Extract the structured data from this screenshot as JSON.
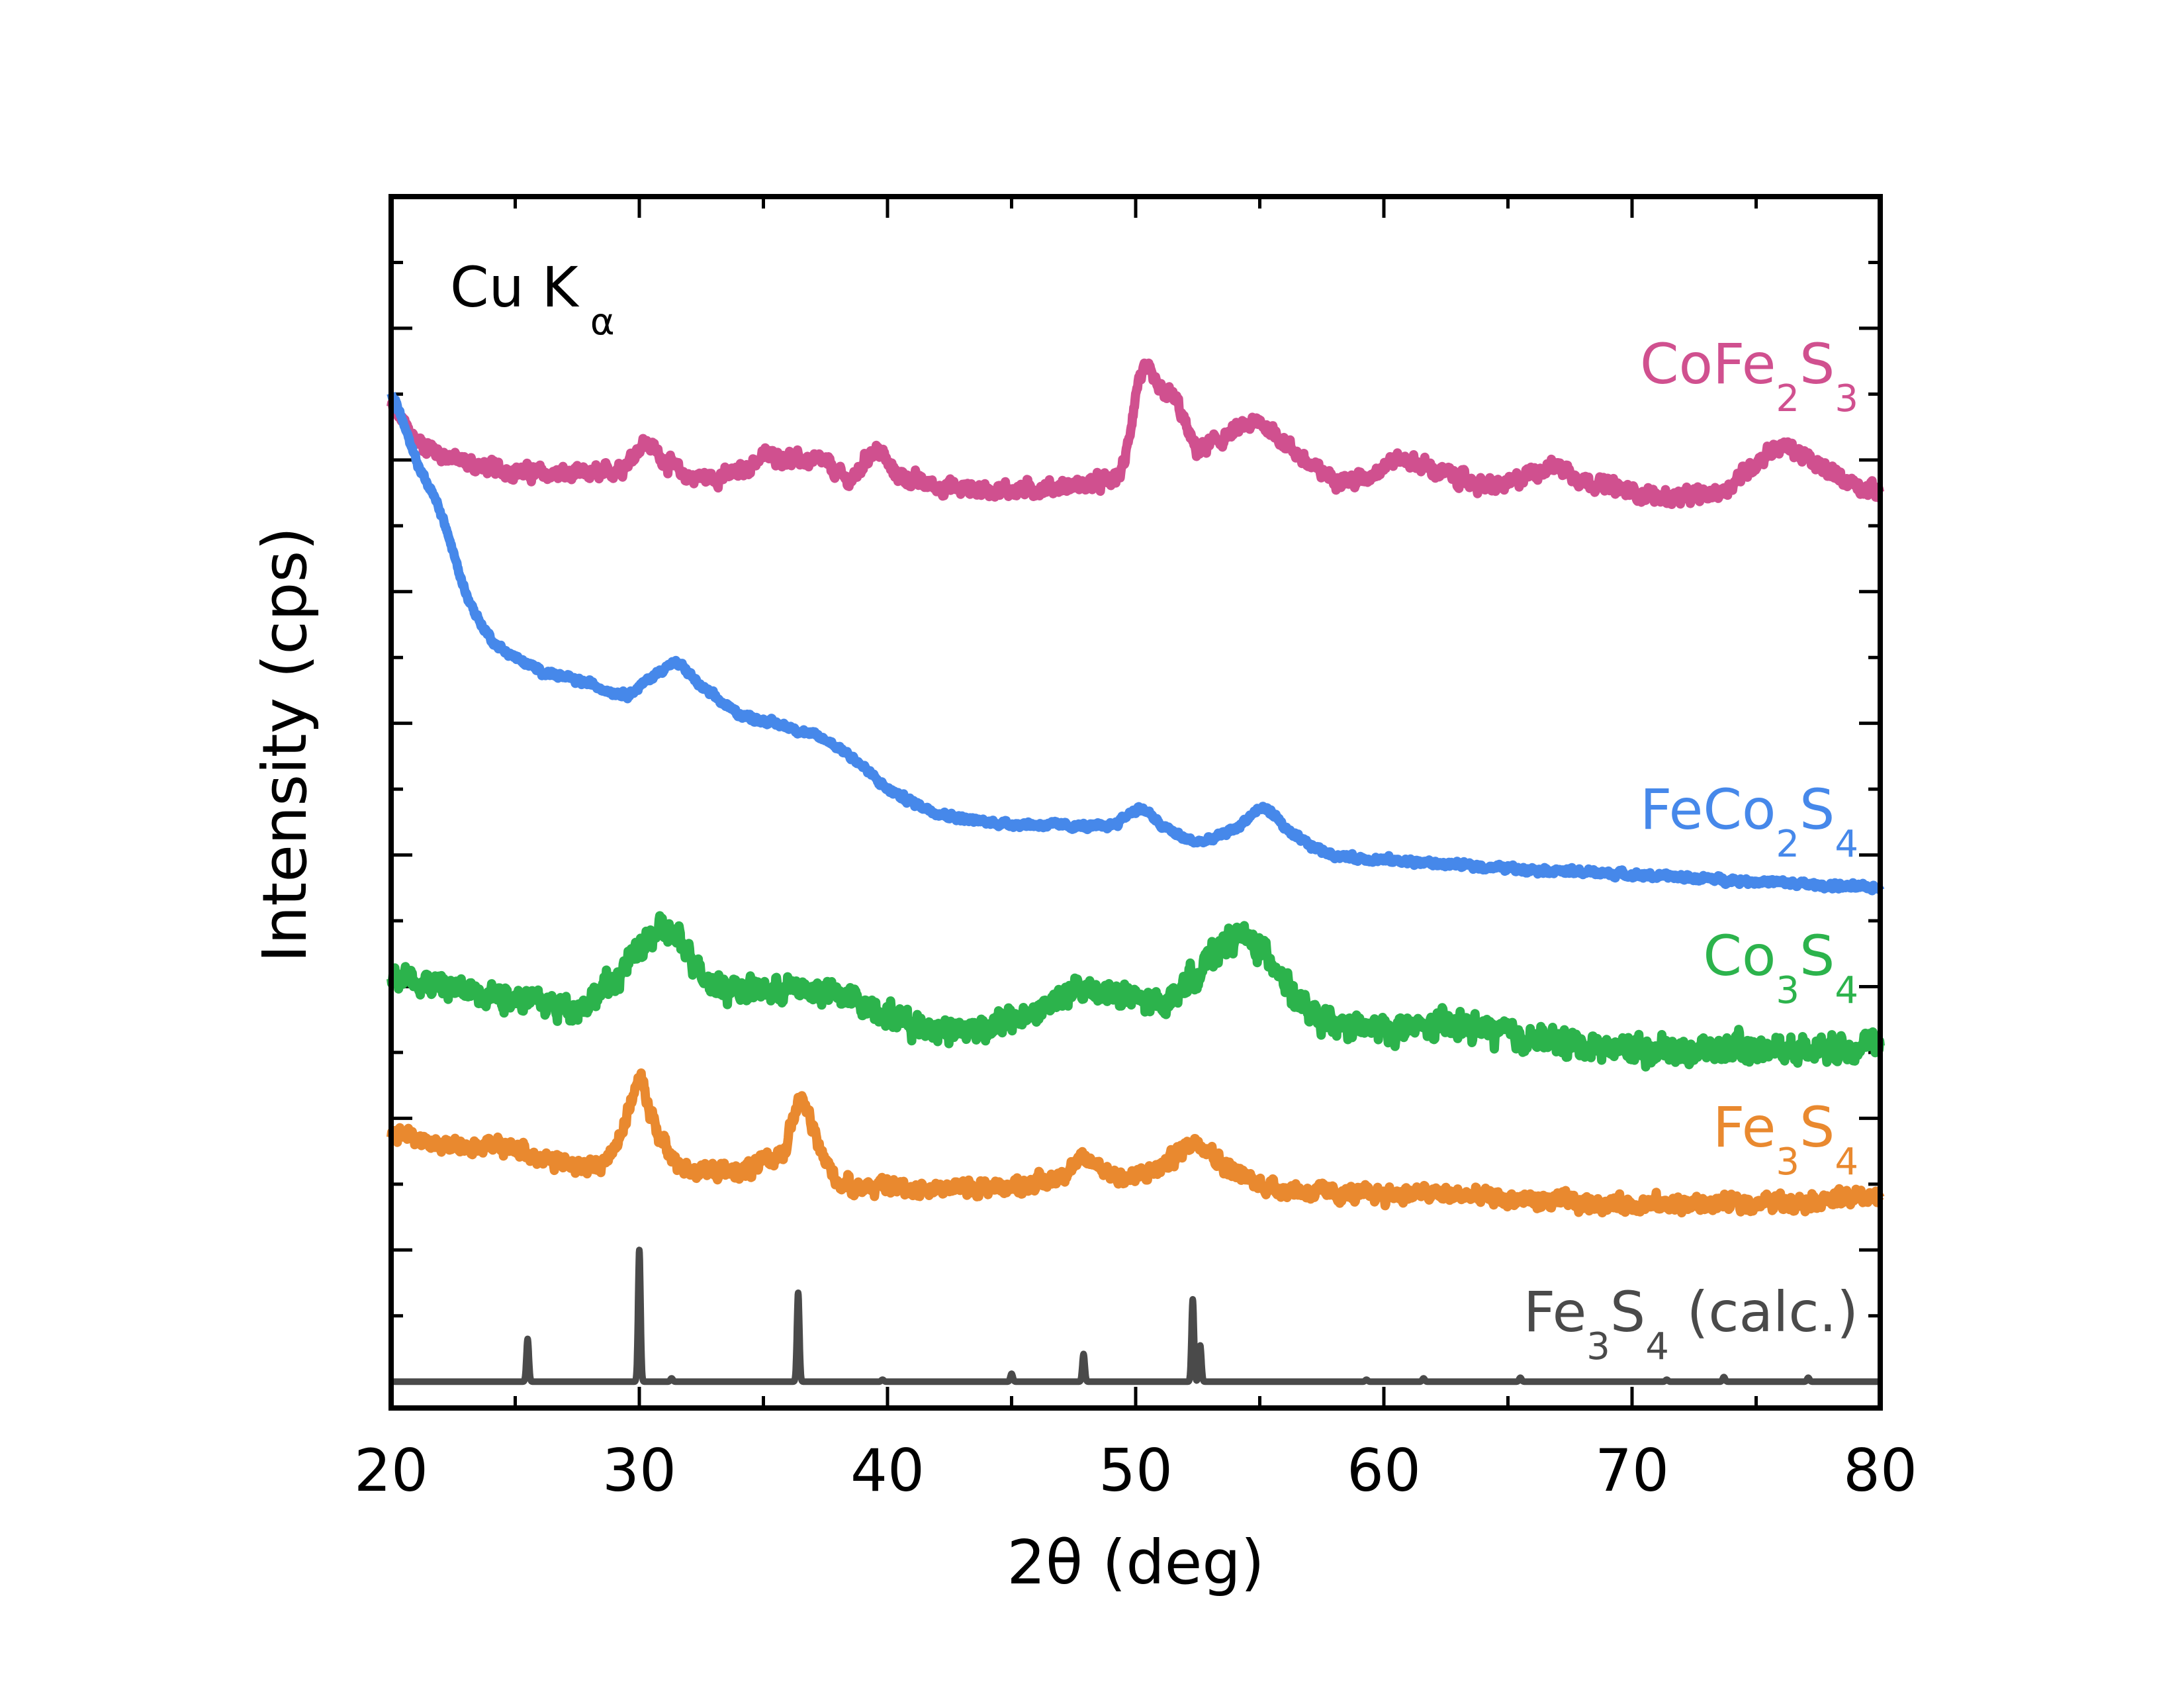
{
  "chart_data": {
    "type": "line",
    "title": "",
    "xlabel": "2θ (deg)",
    "ylabel": "Intensity (cps)",
    "xlim": [
      20,
      80
    ],
    "ylim": [
      -0.4,
      18
    ],
    "xticks": [
      20,
      30,
      40,
      50,
      60,
      70,
      80
    ],
    "xtick_labels": [
      "20",
      "30",
      "40",
      "50",
      "60",
      "70",
      "80"
    ],
    "y_tick_labels_shown": false,
    "annotation": {
      "main": "Cu K",
      "sub": "α"
    },
    "series": [
      {
        "name": "CoFe2S3",
        "label_main": [
          "CoFe",
          "S"
        ],
        "label_sub": [
          "2",
          "3"
        ],
        "color": "#d0508f",
        "noise": 0.12,
        "points": [
          [
            20,
            14.8
          ],
          [
            21,
            14.3
          ],
          [
            23,
            13.95
          ],
          [
            26,
            13.8
          ],
          [
            28.5,
            13.8
          ],
          [
            29.5,
            13.95
          ],
          [
            30.2,
            14.25
          ],
          [
            31,
            14.0
          ],
          [
            32,
            13.75
          ],
          [
            34,
            13.8
          ],
          [
            35,
            14.05
          ],
          [
            36.5,
            14.0
          ],
          [
            37.5,
            13.95
          ],
          [
            38.5,
            13.7
          ],
          [
            39.5,
            14.15
          ],
          [
            40.3,
            13.8
          ],
          [
            42,
            13.6
          ],
          [
            45,
            13.55
          ],
          [
            48.5,
            13.65
          ],
          [
            49.5,
            13.9
          ],
          [
            50.2,
            15.3
          ],
          [
            51,
            15.05
          ],
          [
            51.6,
            14.9
          ],
          [
            52.4,
            14.2
          ],
          [
            53,
            14.25
          ],
          [
            55,
            14.55
          ],
          [
            56.5,
            14.1
          ],
          [
            57.5,
            13.8
          ],
          [
            59,
            13.7
          ],
          [
            60.5,
            14.0
          ],
          [
            62,
            13.85
          ],
          [
            64.5,
            13.6
          ],
          [
            66.8,
            13.9
          ],
          [
            68,
            13.7
          ],
          [
            71,
            13.45
          ],
          [
            73.5,
            13.5
          ],
          [
            74.5,
            13.8
          ],
          [
            76,
            14.2
          ],
          [
            77.5,
            13.9
          ],
          [
            80,
            13.5
          ]
        ]
      },
      {
        "name": "FeCo2S4",
        "label_main": [
          "FeCo",
          "S"
        ],
        "label_sub": [
          "2",
          "4"
        ],
        "color": "#4688ea",
        "noise": 0.05,
        "points": [
          [
            20,
            15.0
          ],
          [
            21,
            14.0
          ],
          [
            22,
            13.2
          ],
          [
            23,
            12.0
          ],
          [
            24,
            11.3
          ],
          [
            25,
            11.0
          ],
          [
            26,
            10.8
          ],
          [
            28,
            10.6
          ],
          [
            29.5,
            10.45
          ],
          [
            30.5,
            10.7
          ],
          [
            31.5,
            10.9
          ],
          [
            32.5,
            10.55
          ],
          [
            34,
            10.15
          ],
          [
            36,
            9.95
          ],
          [
            37.5,
            9.75
          ],
          [
            38.5,
            9.5
          ],
          [
            40,
            9.0
          ],
          [
            42,
            8.65
          ],
          [
            44,
            8.5
          ],
          [
            47,
            8.45
          ],
          [
            49,
            8.45
          ],
          [
            50.2,
            8.7
          ],
          [
            51,
            8.45
          ],
          [
            52.5,
            8.2
          ],
          [
            54,
            8.4
          ],
          [
            55.2,
            8.7
          ],
          [
            56.3,
            8.3
          ],
          [
            58,
            8.0
          ],
          [
            61,
            7.9
          ],
          [
            65,
            7.8
          ],
          [
            70,
            7.7
          ],
          [
            75,
            7.6
          ],
          [
            80,
            7.5
          ]
        ]
      },
      {
        "name": "Co3S4",
        "label_main": [
          "Co",
          "S"
        ],
        "label_sub": [
          "3",
          "4"
        ],
        "color": "#2cb34c",
        "noise": 0.2,
        "points": [
          [
            20,
            6.2
          ],
          [
            22,
            6.0
          ],
          [
            25,
            5.85
          ],
          [
            27.5,
            5.7
          ],
          [
            29,
            6.1
          ],
          [
            30,
            6.55
          ],
          [
            31,
            6.85
          ],
          [
            32,
            6.5
          ],
          [
            33,
            6.05
          ],
          [
            35,
            5.95
          ],
          [
            37,
            5.95
          ],
          [
            39,
            5.75
          ],
          [
            41,
            5.45
          ],
          [
            43,
            5.35
          ],
          [
            45.5,
            5.55
          ],
          [
            48,
            5.95
          ],
          [
            49.5,
            5.85
          ],
          [
            51,
            5.75
          ],
          [
            52.5,
            6.2
          ],
          [
            54,
            6.75
          ],
          [
            55.5,
            6.4
          ],
          [
            56.5,
            5.8
          ],
          [
            57.5,
            5.45
          ],
          [
            60,
            5.35
          ],
          [
            63,
            5.4
          ],
          [
            66,
            5.2
          ],
          [
            70,
            5.05
          ],
          [
            75,
            5.05
          ],
          [
            80,
            5.1
          ]
        ]
      },
      {
        "name": "Fe3S4",
        "label_main": [
          "Fe",
          "S"
        ],
        "label_sub": [
          "3",
          "4"
        ],
        "color": "#e9892f",
        "noise": 0.13,
        "points": [
          [
            20,
            3.8
          ],
          [
            22,
            3.6
          ],
          [
            25,
            3.55
          ],
          [
            26.5,
            3.35
          ],
          [
            28.5,
            3.3
          ],
          [
            29.4,
            3.9
          ],
          [
            30,
            4.55
          ],
          [
            30.6,
            3.9
          ],
          [
            31.5,
            3.3
          ],
          [
            34,
            3.2
          ],
          [
            35.8,
            3.5
          ],
          [
            36.5,
            4.25
          ],
          [
            37.2,
            3.6
          ],
          [
            38,
            3.05
          ],
          [
            40,
            2.95
          ],
          [
            44,
            2.95
          ],
          [
            46.5,
            3.05
          ],
          [
            48,
            3.35
          ],
          [
            49.5,
            3.1
          ],
          [
            51,
            3.25
          ],
          [
            52.5,
            3.65
          ],
          [
            53.5,
            3.3
          ],
          [
            55,
            3.0
          ],
          [
            58,
            2.85
          ],
          [
            62,
            2.85
          ],
          [
            66,
            2.75
          ],
          [
            70,
            2.7
          ],
          [
            75,
            2.72
          ],
          [
            80,
            2.8
          ]
        ]
      },
      {
        "name": "Fe3S4 (calc.)",
        "label_main": [
          "Fe",
          "S"
        ],
        "label_sub": [
          "3",
          "4"
        ],
        "label_tail": " (calc.)",
        "color": "#4a4a4a",
        "noise": 0,
        "baseline": 0,
        "peaks": [
          [
            25.5,
            0.65
          ],
          [
            30.0,
            2.0
          ],
          [
            31.3,
            0.05
          ],
          [
            36.4,
            1.35
          ],
          [
            39.8,
            0.03
          ],
          [
            45.0,
            0.12
          ],
          [
            47.9,
            0.42
          ],
          [
            52.3,
            1.25
          ],
          [
            52.6,
            0.55
          ],
          [
            59.3,
            0.03
          ],
          [
            61.6,
            0.05
          ],
          [
            65.5,
            0.06
          ],
          [
            71.4,
            0.03
          ],
          [
            73.7,
            0.07
          ],
          [
            77.1,
            0.06
          ]
        ]
      }
    ]
  }
}
